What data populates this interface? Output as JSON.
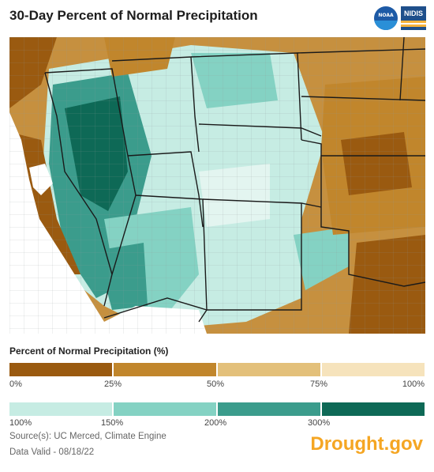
{
  "title": "30-Day Percent of Normal Precipitation",
  "logos": {
    "noaa": "NOAA",
    "nidis": "NIDIS"
  },
  "legend": {
    "title": "Percent of Normal Precipitation (%)",
    "dry_colors": [
      "#9a5a10",
      "#c1862c",
      "#e3c07a",
      "#f6e3bc"
    ],
    "dry_ticks": [
      "0%",
      "25%",
      "50%",
      "75%",
      "100%"
    ],
    "wet_colors": [
      "#c6ece3",
      "#84d2c3",
      "#3b9c8c",
      "#0e6956"
    ],
    "wet_ticks": [
      "100%",
      "150%",
      "200%",
      "300%"
    ]
  },
  "source": "Source(s): UC Merced, Climate Engine",
  "valid": "Data Valid - 08/18/22",
  "brand": "Drought.gov",
  "map": {
    "region": "Southwestern United States",
    "ocean_color": "#ffffff",
    "border_color": "#1a1a1a",
    "county_line_color": "#9aa0a0"
  }
}
